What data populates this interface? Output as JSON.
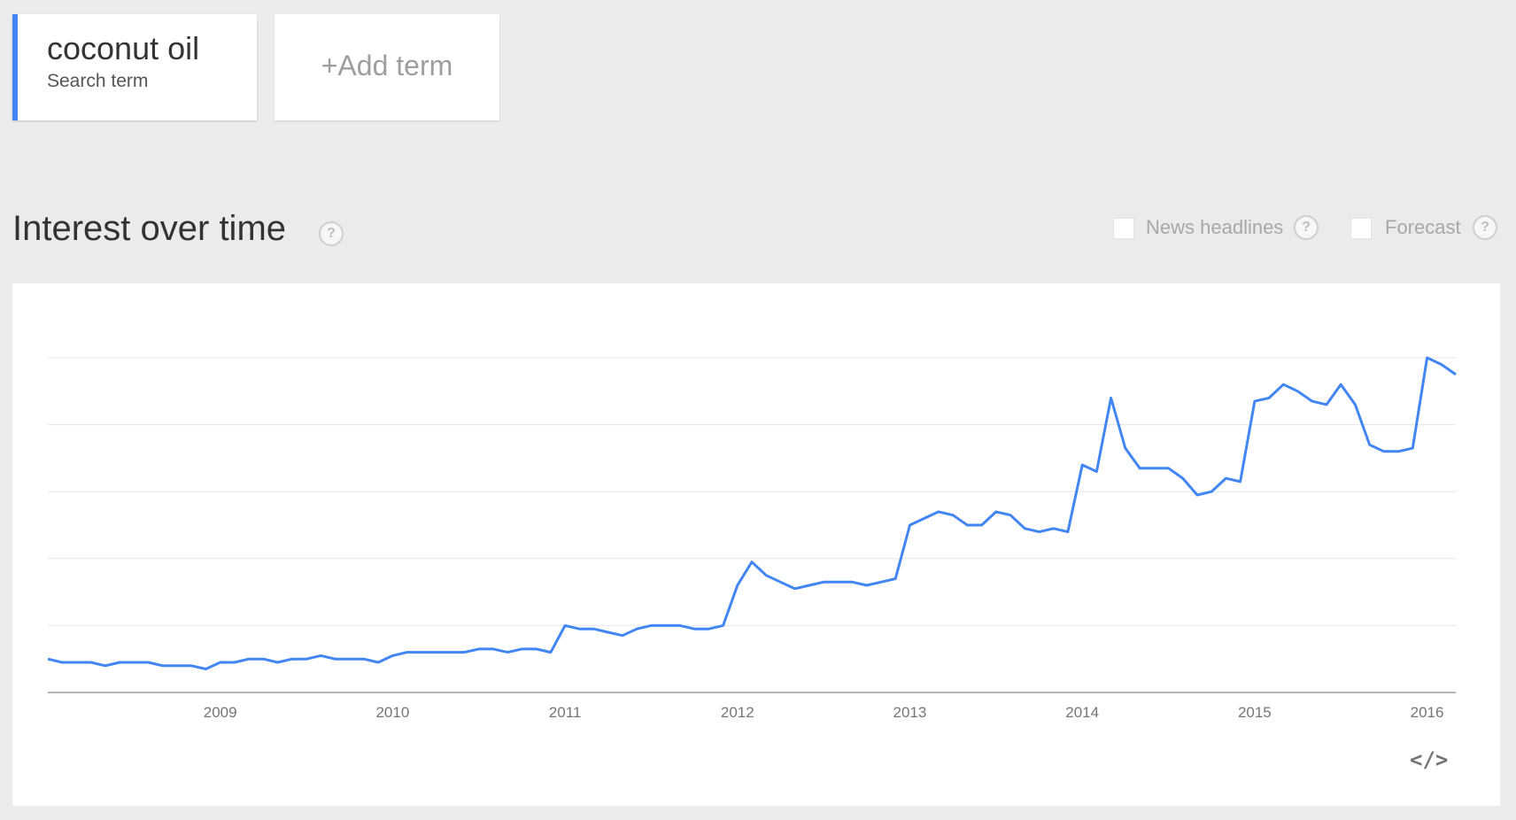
{
  "search_term": {
    "name": "coconut oil",
    "type_label": "Search term",
    "accent_color": "#4285f4"
  },
  "add_term": {
    "label": "+Add term"
  },
  "section": {
    "title": "Interest over time",
    "help_icon": "question-icon"
  },
  "options": {
    "news_headlines": {
      "label": "News headlines",
      "checked": false
    },
    "forecast": {
      "label": "Forecast",
      "checked": false
    }
  },
  "embed": {
    "label": "</>",
    "icon": "embed-code-icon"
  },
  "chart_data": {
    "type": "line",
    "series": [
      {
        "color": "#4285f4",
        "values": [
          10,
          9,
          9,
          9,
          8,
          9,
          9,
          9,
          8,
          8,
          8,
          7,
          9,
          9,
          10,
          10,
          9,
          10,
          10,
          11,
          10,
          10,
          10,
          9,
          11,
          12,
          12,
          12,
          12,
          12,
          13,
          13,
          12,
          13,
          13,
          12,
          20,
          19,
          19,
          18,
          17,
          19,
          20,
          20,
          20,
          19,
          19,
          20,
          32,
          39,
          35,
          33,
          31,
          32,
          33,
          33,
          33,
          32,
          33,
          34,
          50,
          52,
          54,
          53,
          50,
          50,
          54,
          53,
          49,
          48,
          49,
          48,
          68,
          66,
          88,
          73,
          67,
          67,
          67,
          64,
          59,
          60,
          64,
          63,
          87,
          88,
          92,
          90,
          87,
          86,
          92,
          86,
          74,
          72,
          72,
          73,
          100,
          98,
          95
        ]
      }
    ],
    "x_start": "2008-01",
    "x_ticks": [
      "2009",
      "2010",
      "2011",
      "2012",
      "2013",
      "2014",
      "2015",
      "2016"
    ],
    "ylim": [
      0,
      100
    ],
    "y_gridlines": [
      20,
      40,
      60,
      80,
      100
    ],
    "grid": true,
    "legend": "none"
  }
}
